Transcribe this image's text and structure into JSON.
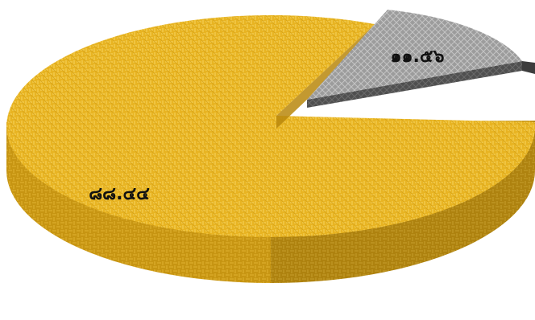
{
  "chart_data": {
    "type": "pie",
    "style": "3d-exploded",
    "slices": [
      {
        "value": 88.44,
        "label": "๘๘.๔๔",
        "color": "#e8b422",
        "side_color": "#b88a10",
        "pattern": "woven"
      },
      {
        "value": 11.56,
        "label": "๑๑.๕๖",
        "color": "#9a9a9a",
        "side_color": "#555555",
        "pattern": "crosshatch",
        "exploded": true
      }
    ],
    "title": "",
    "legend": "none"
  }
}
